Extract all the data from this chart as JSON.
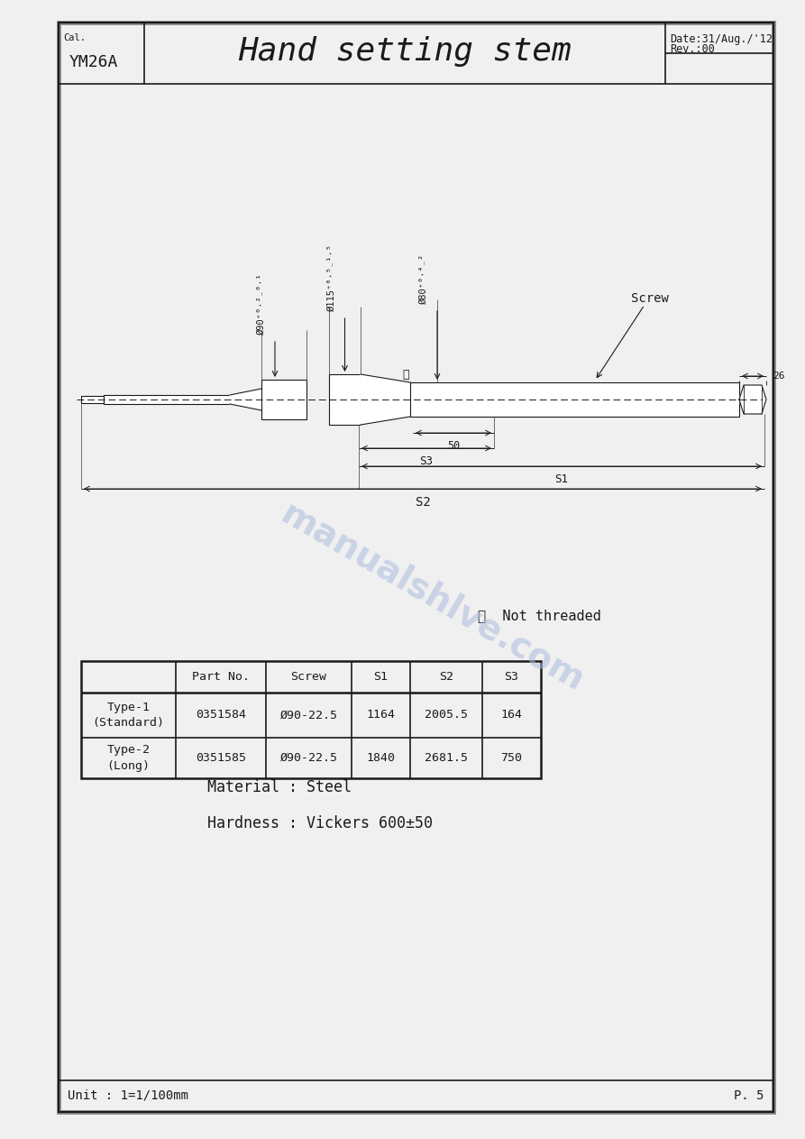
{
  "title": "Hand setting stem",
  "cal": "YM26A",
  "date": "Date:31/Aug./'12",
  "rev": "Rev.:00",
  "page": "P. 5",
  "unit": "Unit : 1=1/100mm",
  "material": "Material : Steel",
  "hardness": "Hardness : Vickers 600±50",
  "note": "※  Not threaded",
  "dim_phi90": "Ø90⁺°·²₋°·¹",
  "dim_phi115": "Ø115⁺°·⁵₋¹·⁵",
  "dim_phi80": "Ø80⁺°·⁴₋²",
  "dim_26": "26",
  "dim_50": "50",
  "dim_S3": "S3",
  "dim_S1": "S1",
  "dim_S2": "S2",
  "screw_label": "Screw",
  "table_headers": [
    "",
    "Part No.",
    "Screw",
    "S1",
    "S2",
    "S3"
  ],
  "table_rows": [
    [
      "Type-1\n(Standard)",
      "0351584",
      "Ø90-22.5",
      "1164",
      "2005.5",
      "164"
    ],
    [
      "Type-2\n(Long)",
      "0351585",
      "Ø90-22.5",
      "1840",
      "2681.5",
      "750"
    ]
  ],
  "bg_color": "#f0f0f0",
  "line_color": "#1a1a1a",
  "watermark_color": "#aabbdd"
}
